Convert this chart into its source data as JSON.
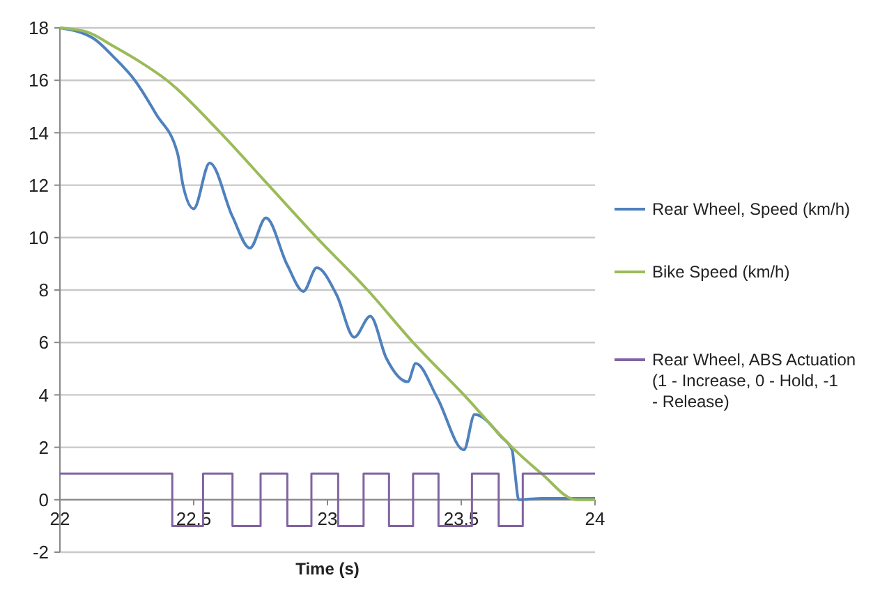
{
  "chart_data": {
    "type": "line",
    "xlabel": "Time (s)",
    "xlim": [
      22,
      24
    ],
    "xticks": [
      22,
      {
        "value": 22.5,
        "label": "22,5"
      },
      23,
      {
        "value": 23.5,
        "label": "23,5"
      },
      24
    ],
    "ylim": [
      -2,
      18
    ],
    "yticks": [
      -2,
      0,
      2,
      4,
      6,
      8,
      10,
      12,
      14,
      16,
      18
    ],
    "grid": "y",
    "legend": "right",
    "series": [
      {
        "name": "Rear Wheel, Speed (km/h)",
        "color": "#4f81bd",
        "x": [
          22,
          22.125,
          22.2,
          22.28,
          22.36,
          22.44,
          22.46,
          22.5,
          22.56,
          22.645,
          22.71,
          22.77,
          22.85,
          22.91,
          22.96,
          23.035,
          23.1,
          23.16,
          23.22,
          23.3,
          23.33,
          23.41,
          23.51,
          23.55,
          23.65,
          23.69,
          23.7,
          23.715,
          23.8,
          24
        ],
        "values": [
          18,
          17.6,
          16.9,
          16,
          14.7,
          13.2,
          12,
          11.1,
          12.85,
          10.8,
          9.6,
          10.75,
          8.95,
          7.95,
          8.85,
          7.8,
          6.2,
          7,
          5.4,
          4.5,
          5.2,
          3.9,
          1.9,
          3.25,
          2.4,
          1.9,
          1.1,
          0,
          0.05,
          0.05
        ]
      },
      {
        "name": "Bike Speed (km/h)",
        "color": "#9bbb59",
        "x": [
          22,
          22.1,
          22.2,
          22.3,
          22.4,
          22.6,
          22.78,
          22.96,
          23.15,
          23.32,
          23.51,
          23.69,
          23.8,
          23.93,
          24
        ],
        "values": [
          18,
          17.85,
          17.3,
          16.7,
          16,
          14,
          12,
          10,
          8,
          6,
          4,
          2,
          1,
          0,
          0
        ]
      },
      {
        "name": "Rear Wheel, ABS Actuation (1 - Increase, 0 - Hold, -1 - Release)",
        "type": "step",
        "color": "#8064a2",
        "x": [
          22,
          22.42,
          22.535,
          22.645,
          22.75,
          22.85,
          22.94,
          23.04,
          23.135,
          23.23,
          23.32,
          23.415,
          23.54,
          23.64,
          23.73,
          24
        ],
        "values": [
          1,
          -1,
          1,
          -1,
          1,
          -1,
          1,
          -1,
          1,
          -1,
          1,
          -1,
          1,
          -1,
          1,
          1
        ]
      }
    ]
  }
}
